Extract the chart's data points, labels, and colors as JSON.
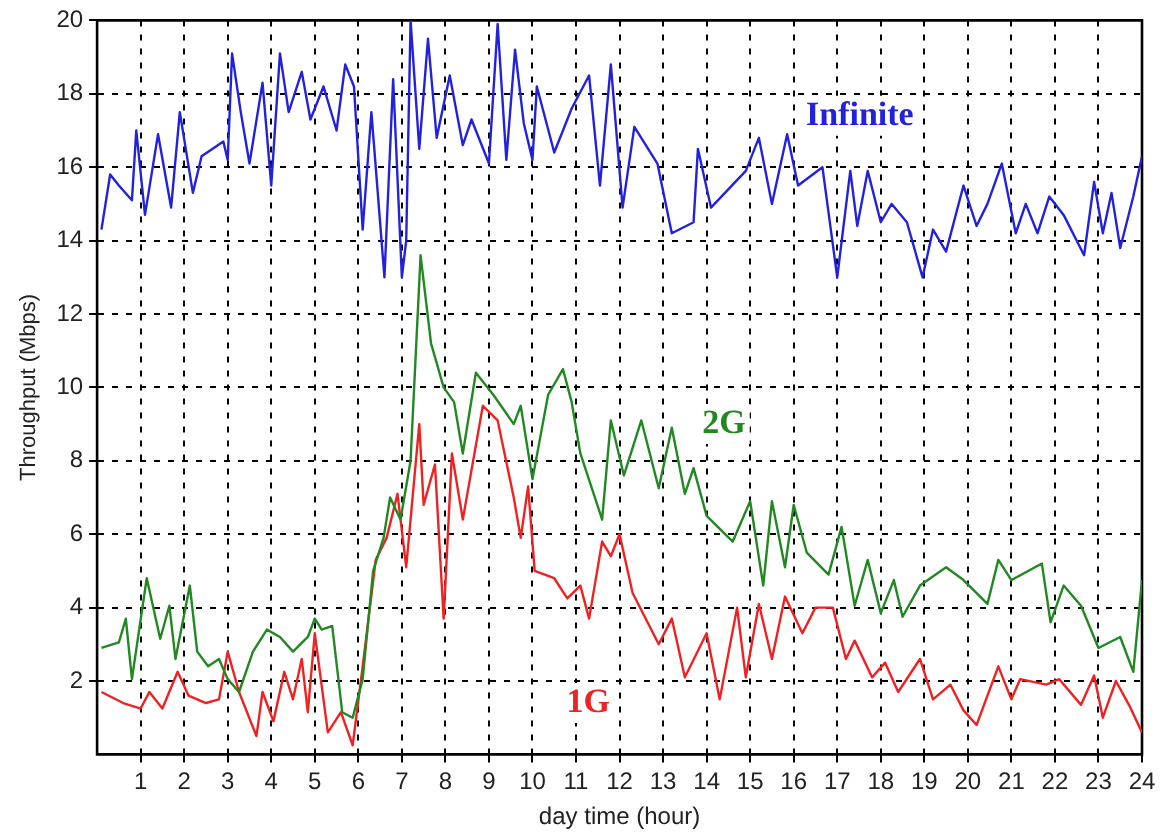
{
  "chart_data": {
    "type": "line",
    "xlabel": "day time (hour)",
    "ylabel": "Throughput (Mbps)",
    "xlim": [
      0,
      24
    ],
    "xticks": [
      1,
      2,
      3,
      4,
      5,
      6,
      7,
      8,
      9,
      10,
      11,
      12,
      13,
      14,
      15,
      16,
      17,
      18,
      19,
      20,
      21,
      22,
      23,
      24
    ],
    "ylim": [
      0,
      20
    ],
    "yticks": [
      2,
      4,
      6,
      8,
      10,
      12,
      14,
      16,
      18,
      20
    ],
    "grid": true,
    "legend": false,
    "marker": "none",
    "line_style": "solid",
    "series": [
      {
        "name": "Infinite",
        "color": "#2222dd",
        "x": [
          0.1,
          0.3,
          0.5,
          0.8,
          0.9,
          1.1,
          1.4,
          1.7,
          1.9,
          2.2,
          2.4,
          2.9,
          3.0,
          3.1,
          3.3,
          3.5,
          3.8,
          4.0,
          4.2,
          4.4,
          4.7,
          4.9,
          5.2,
          5.5,
          5.7,
          5.9,
          6.1,
          6.3,
          6.6,
          6.8,
          7.0,
          7.1,
          7.2,
          7.4,
          7.6,
          7.8,
          8.1,
          8.4,
          8.6,
          9.0,
          9.2,
          9.4,
          9.6,
          9.8,
          10.0,
          10.1,
          10.5,
          10.9,
          11.3,
          11.55,
          11.8,
          12.07,
          12.34,
          12.87,
          13.2,
          13.7,
          13.8,
          14.1,
          14.9,
          15.2,
          15.5,
          15.85,
          16.1,
          16.66,
          17.0,
          17.3,
          17.46,
          17.7,
          18.0,
          18.25,
          18.6,
          18.96,
          19.2,
          19.5,
          19.9,
          20.2,
          20.45,
          20.78,
          21.1,
          21.33,
          21.6,
          21.87,
          22.2,
          22.67,
          22.9,
          23.1,
          23.3,
          23.5,
          23.8,
          24.0
        ],
        "values": [
          14.3,
          15.8,
          15.5,
          15.1,
          17.0,
          14.7,
          16.9,
          14.9,
          17.5,
          15.3,
          16.3,
          16.7,
          16.2,
          19.1,
          17.5,
          16.1,
          18.3,
          15.5,
          19.1,
          17.5,
          18.6,
          17.3,
          18.2,
          17.0,
          18.8,
          18.2,
          14.3,
          17.5,
          13.0,
          18.4,
          13.0,
          14.0,
          20.0,
          16.5,
          19.5,
          16.8,
          18.5,
          16.6,
          17.3,
          16.1,
          19.9,
          16.2,
          19.2,
          17.2,
          16.2,
          18.2,
          16.4,
          17.6,
          18.5,
          15.5,
          18.8,
          14.9,
          17.1,
          16.1,
          14.2,
          14.5,
          16.5,
          14.9,
          15.9,
          16.8,
          15.0,
          16.9,
          15.5,
          16.0,
          13.0,
          15.9,
          14.4,
          15.9,
          14.5,
          15.0,
          14.5,
          13.0,
          14.3,
          13.7,
          15.5,
          14.4,
          15.0,
          16.1,
          14.2,
          15.0,
          14.2,
          15.2,
          14.7,
          13.6,
          15.6,
          14.2,
          15.3,
          13.8,
          15.2,
          16.3
        ]
      },
      {
        "name": "2G",
        "color": "#228822",
        "x": [
          0.1,
          0.5,
          0.66,
          0.8,
          1.14,
          1.45,
          1.66,
          1.8,
          2.13,
          2.3,
          2.55,
          2.8,
          3.0,
          3.26,
          3.58,
          3.9,
          4.2,
          4.5,
          4.84,
          5.0,
          5.16,
          5.4,
          5.63,
          5.87,
          6.1,
          6.34,
          6.58,
          6.73,
          6.97,
          7.2,
          7.43,
          7.55,
          7.67,
          7.96,
          8.2,
          8.4,
          8.7,
          9.1,
          9.57,
          9.73,
          10.0,
          10.36,
          10.7,
          10.9,
          11.1,
          11.6,
          11.8,
          12.1,
          12.5,
          12.9,
          13.2,
          13.5,
          13.7,
          14.0,
          14.6,
          15.0,
          15.3,
          15.5,
          15.8,
          16.0,
          16.3,
          16.8,
          17.1,
          17.4,
          17.7,
          18.0,
          18.3,
          18.5,
          18.9,
          19.5,
          19.9,
          20.45,
          20.7,
          21.0,
          21.7,
          21.9,
          22.2,
          22.6,
          23.0,
          23.5,
          23.8,
          24.0
        ],
        "values": [
          2.9,
          3.05,
          3.7,
          2.05,
          4.8,
          3.15,
          4.05,
          2.6,
          4.6,
          2.8,
          2.4,
          2.6,
          2.05,
          1.7,
          2.8,
          3.4,
          3.2,
          2.8,
          3.2,
          3.7,
          3.4,
          3.5,
          1.15,
          1.0,
          2.05,
          5.0,
          5.9,
          7.0,
          6.4,
          8.0,
          13.6,
          12.4,
          11.2,
          10.0,
          9.6,
          8.2,
          10.4,
          9.8,
          9.0,
          9.5,
          7.5,
          9.8,
          10.5,
          9.6,
          8.2,
          6.4,
          9.1,
          7.6,
          9.1,
          7.25,
          8.9,
          7.1,
          7.8,
          6.5,
          5.8,
          6.9,
          4.6,
          6.9,
          5.1,
          6.8,
          5.5,
          4.9,
          6.2,
          4.05,
          5.3,
          3.85,
          4.75,
          3.75,
          4.6,
          5.1,
          4.75,
          4.1,
          5.3,
          4.75,
          5.2,
          3.6,
          4.6,
          4.05,
          2.9,
          3.2,
          2.25,
          4.75
        ]
      },
      {
        "name": "1G",
        "color": "#ee2222",
        "x": [
          0.1,
          0.6,
          1.0,
          1.2,
          1.5,
          1.85,
          2.1,
          2.5,
          2.8,
          3.0,
          3.26,
          3.66,
          3.8,
          4.05,
          4.3,
          4.5,
          4.7,
          4.84,
          5.0,
          5.3,
          5.6,
          5.87,
          6.1,
          6.4,
          6.65,
          6.9,
          7.1,
          7.4,
          7.5,
          7.76,
          7.96,
          8.15,
          8.4,
          8.86,
          9.2,
          9.57,
          9.73,
          9.9,
          10.05,
          10.5,
          10.8,
          11.1,
          11.3,
          11.6,
          11.8,
          12.0,
          12.3,
          12.9,
          13.2,
          13.5,
          14.0,
          14.3,
          14.7,
          14.9,
          15.2,
          15.5,
          15.8,
          16.2,
          16.5,
          16.9,
          17.2,
          17.4,
          17.8,
          18.1,
          18.4,
          18.9,
          19.2,
          19.6,
          19.9,
          20.2,
          20.7,
          21.0,
          21.2,
          21.8,
          22.1,
          22.6,
          22.9,
          23.1,
          23.4,
          23.7,
          24.0
        ],
        "values": [
          1.7,
          1.4,
          1.25,
          1.7,
          1.25,
          2.25,
          1.6,
          1.4,
          1.5,
          2.8,
          1.7,
          0.5,
          1.7,
          0.9,
          2.25,
          1.5,
          2.6,
          1.15,
          3.3,
          0.6,
          1.15,
          0.25,
          2.4,
          5.3,
          5.9,
          7.1,
          5.1,
          9.0,
          6.8,
          7.9,
          3.7,
          8.2,
          6.4,
          9.5,
          9.1,
          7.0,
          5.9,
          7.3,
          5.0,
          4.8,
          4.25,
          4.6,
          3.7,
          5.8,
          5.4,
          6.0,
          4.4,
          3.0,
          3.7,
          2.1,
          3.3,
          1.5,
          4.0,
          2.1,
          4.1,
          2.6,
          4.3,
          3.3,
          4.0,
          4.0,
          2.6,
          3.1,
          2.1,
          2.5,
          1.7,
          2.6,
          1.5,
          1.9,
          1.2,
          0.8,
          2.4,
          1.5,
          2.05,
          1.9,
          2.05,
          1.35,
          2.15,
          1.0,
          2.0,
          1.35,
          0.6
        ]
      }
    ]
  }
}
